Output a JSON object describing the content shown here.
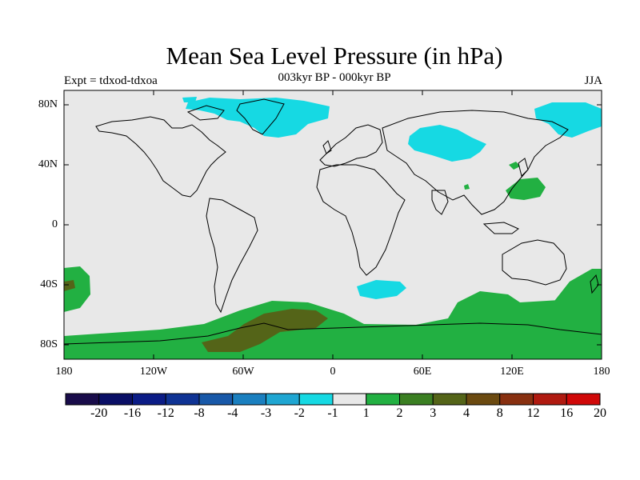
{
  "title": "Mean Sea Level Pressure (in hPa)",
  "subtitle": "003kyr BP - 000kyr BP",
  "left_label": "Expt = tdxod-tdxoa",
  "right_label": "JJA",
  "lat_labels": [
    "80N",
    "40N",
    "0",
    "40S",
    "80S"
  ],
  "lon_labels": [
    "180",
    "120W",
    "60W",
    "0",
    "60E",
    "120E",
    "180"
  ],
  "colorbar": {
    "labels": [
      "-20",
      "-16",
      "-12",
      "-8",
      "-4",
      "-3",
      "-2",
      "-1",
      "1",
      "2",
      "3",
      "4",
      "8",
      "12",
      "16",
      "20"
    ],
    "colors": [
      "#190c4a",
      "#0a0f66",
      "#0b1c86",
      "#0f3394",
      "#1858a8",
      "#1a7fbf",
      "#1fa6d2",
      "#16d9e3",
      "#e8e8e8",
      "#22b042",
      "#3b7f22",
      "#546418",
      "#6b4a10",
      "#883010",
      "#b01a10",
      "#d00808"
    ]
  },
  "map_colors": {
    "ocean_neutral": "#e8e8e8",
    "negative": "#16d9e3",
    "positive_2": "#22b042",
    "positive_4": "#546418",
    "coast": "#000000"
  }
}
